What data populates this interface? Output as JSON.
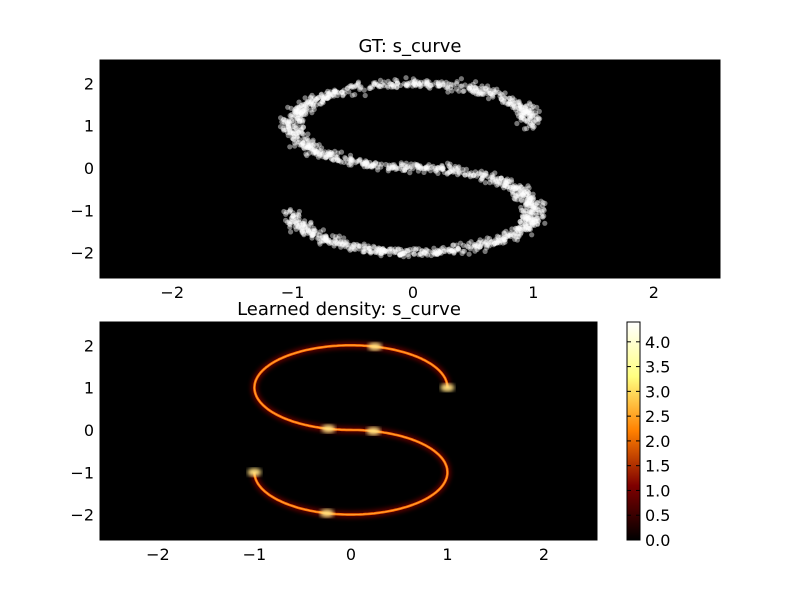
{
  "chart_data": [
    {
      "type": "scatter",
      "title": "GT: s_curve",
      "xlim": [
        -2.6,
        2.55
      ],
      "ylim": [
        -2.6,
        2.55
      ],
      "xticks": [
        -2,
        -1,
        0,
        1,
        2
      ],
      "yticks": [
        -2,
        -1,
        0,
        1,
        2
      ],
      "xtick_labels": [
        "−2",
        "−1",
        "0",
        "1",
        "2"
      ],
      "ytick_labels": [
        "−2",
        "−1",
        "0",
        "1",
        "2"
      ],
      "background": "#000000",
      "point_color": "#ffffff",
      "curve": "s_curve",
      "grid": false
    },
    {
      "type": "heatmap",
      "title": "Learned density: s_curve",
      "xlim": [
        -2.6,
        2.55
      ],
      "ylim": [
        -2.6,
        2.55
      ],
      "xticks": [
        -2,
        -1,
        0,
        1,
        2
      ],
      "yticks": [
        -2,
        -1,
        0,
        1,
        2
      ],
      "xtick_labels": [
        "−2",
        "−1",
        "0",
        "1",
        "2"
      ],
      "ytick_labels": [
        "−2",
        "−1",
        "0",
        "1",
        "2"
      ],
      "colormap": "afmhot",
      "colorbar": {
        "range": [
          0.0,
          4.4
        ],
        "ticks": [
          0.0,
          0.5,
          1.0,
          1.5,
          2.0,
          2.5,
          3.0,
          3.5,
          4.0
        ],
        "tick_labels": [
          "0.0",
          "0.5",
          "1.0",
          "1.5",
          "2.0",
          "2.5",
          "3.0",
          "3.5",
          "4.0"
        ]
      },
      "grid": false
    }
  ]
}
